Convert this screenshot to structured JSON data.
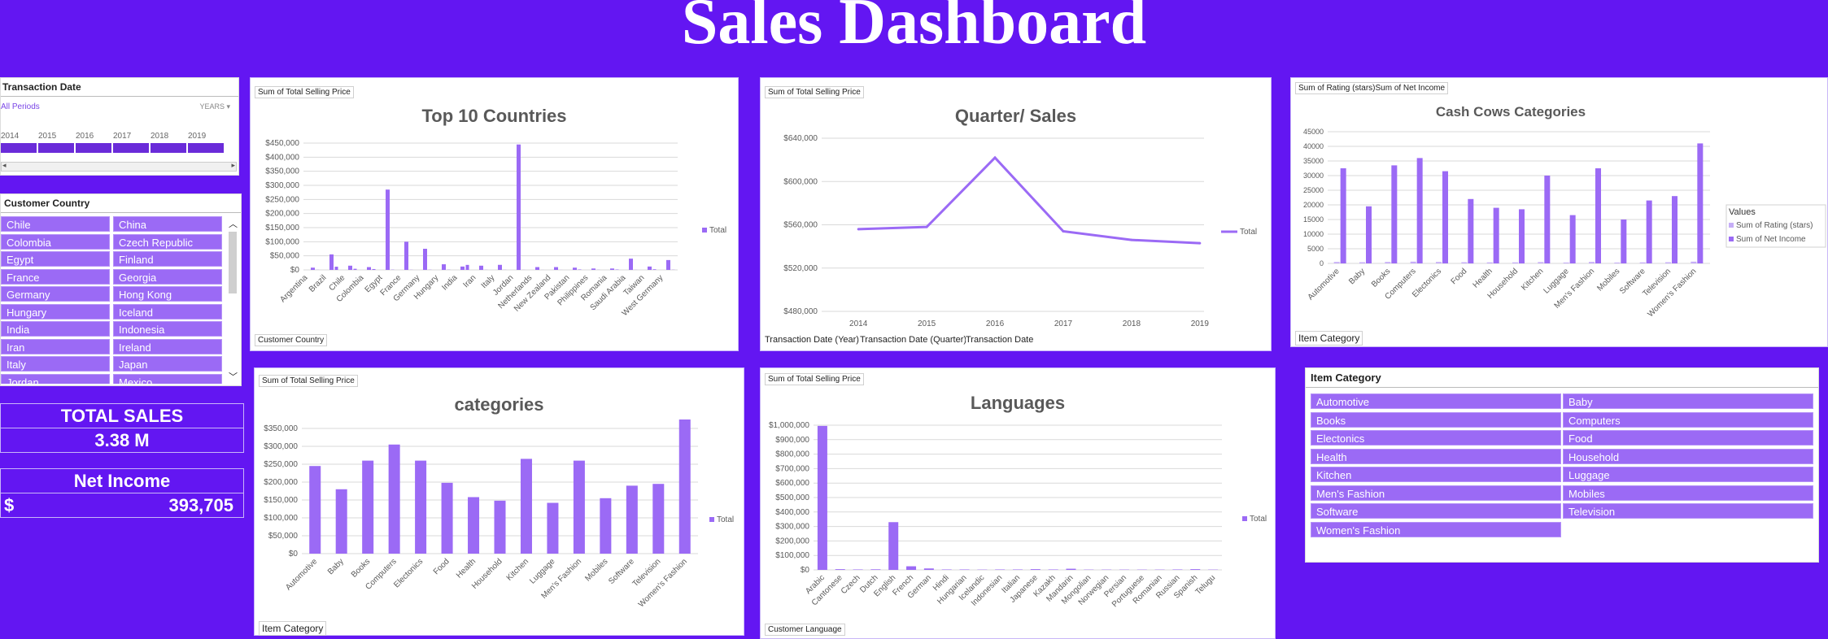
{
  "header": {
    "title": "Sales Dashboard"
  },
  "date_slicer": {
    "title": "Transaction Date",
    "selection": "All Periods",
    "level": "YEARS",
    "years": [
      "2014",
      "2015",
      "2016",
      "2017",
      "2018",
      "2019"
    ]
  },
  "country_slicer": {
    "title": "Customer Country",
    "items": [
      "Chile",
      "China",
      "Colombia",
      "Czech Republic",
      "Egypt",
      "Finland",
      "France",
      "Georgia",
      "Germany",
      "Hong Kong",
      "Hungary",
      "Iceland",
      "India",
      "Indonesia",
      "Iran",
      "Ireland",
      "Italy",
      "Japan",
      "Jordan",
      "Mexico"
    ]
  },
  "kpis": {
    "total_sales_label": "TOTAL SALES",
    "total_sales_value": "3.38 M",
    "net_income_label": "Net Income",
    "net_income_currency": "$",
    "net_income_value": "393,705"
  },
  "category_slicer": {
    "title": "Item Category",
    "items": [
      "Automotive",
      "Baby",
      "Books",
      "Computers",
      "Electonics",
      "Food",
      "Health",
      "Household",
      "Kitchen",
      "Luggage",
      "Men's Fashion",
      "Mobiles",
      "Software",
      "Television",
      "Women's Fashion"
    ]
  },
  "chart_data": [
    {
      "id": "countries",
      "type": "bar",
      "title": "Top 10 Countries",
      "value_field": "Sum of Total Selling Price",
      "axis_field": "Customer Country",
      "legend": "Total",
      "legend_position": "right",
      "categories": [
        "Argentina",
        "Brazil",
        "Chile",
        "Colombia",
        "Egypt",
        "France",
        "Germany",
        "Hungary",
        "India",
        "Iran",
        "Italy",
        "Jordan",
        "Netherlands",
        "New Zealand",
        "Pakistan",
        "Philippines",
        "Romania",
        "Saudi Arabia",
        "Taiwan",
        "West Germany"
      ],
      "x_tick_labels": [
        "Argentina",
        "Brazil",
        "Chile",
        "Colombia",
        "Egypt",
        "France",
        "Germany",
        "Hungary",
        "India",
        "Iran",
        "Italy",
        "Jordan",
        "Netherlands",
        "New Zealand",
        "Pakistan",
        "Philippines",
        "Romania",
        "Saudi Arabia",
        "Taiwan",
        "West Germany"
      ],
      "values": [
        8000,
        55000,
        15000,
        10000,
        285000,
        100000,
        75000,
        20000,
        12000,
        15000,
        18000,
        445000,
        10000,
        10000,
        8000,
        5000,
        5000,
        40000,
        12000,
        35000
      ],
      "ylim": [
        0,
        450000
      ],
      "yticks": [
        0,
        50000,
        100000,
        150000,
        200000,
        250000,
        300000,
        350000,
        400000,
        450000
      ],
      "ytick_labels": [
        "$0",
        "$50,000",
        "$100,000",
        "$150,000",
        "$200,000",
        "$250,000",
        "$300,000",
        "$350,000",
        "$400,000",
        "$450,000"
      ],
      "grid": true
    },
    {
      "id": "quarter",
      "type": "line",
      "title": "Quarter/ Sales",
      "value_field": "Sum of Total Selling Price",
      "axis_fields": [
        "Transaction Date (Year)",
        "Transaction Date (Quarter)",
        "Transaction Date"
      ],
      "legend": "Total",
      "legend_position": "right",
      "x": [
        "2014",
        "2015",
        "2016",
        "2017",
        "2018",
        "2019"
      ],
      "values": [
        556000,
        558000,
        622000,
        554000,
        546000,
        543000
      ],
      "ylim": [
        480000,
        640000
      ],
      "yticks": [
        480000,
        520000,
        560000,
        600000,
        640000
      ],
      "ytick_labels": [
        "$480,000",
        "$520,000",
        "$560,000",
        "$600,000",
        "$640,000"
      ],
      "grid": true
    },
    {
      "id": "cashcows",
      "type": "bar",
      "title": "Cash Cows Categories",
      "value_field": "Sum of Rating (stars)Sum of Net Income",
      "axis_field": "Item Category",
      "legend_title": "Values",
      "legend_position": "right",
      "categories": [
        "Automotive",
        "Baby",
        "Books",
        "Computers",
        "Electonics",
        "Food",
        "Health",
        "Household",
        "Kitchen",
        "Luggage",
        "Men's Fashion",
        "Mobiles",
        "Software",
        "Television",
        "Women's Fashion"
      ],
      "series": [
        {
          "name": "Sum of Rating (stars)",
          "color": "#c6aef7",
          "values": [
            500,
            400,
            500,
            600,
            500,
            400,
            350,
            350,
            450,
            300,
            500,
            300,
            350,
            400,
            600
          ]
        },
        {
          "name": "Sum of Net Income",
          "color": "#9b6af5",
          "values": [
            32500,
            19500,
            33500,
            36000,
            31500,
            22000,
            19000,
            18500,
            30000,
            16500,
            32500,
            15000,
            21500,
            23000,
            41000
          ]
        }
      ],
      "ylim": [
        0,
        45000
      ],
      "yticks": [
        0,
        5000,
        10000,
        15000,
        20000,
        25000,
        30000,
        35000,
        40000,
        45000
      ],
      "ytick_labels": [
        "0",
        "5000",
        "10000",
        "15000",
        "20000",
        "25000",
        "30000",
        "35000",
        "40000",
        "45000"
      ],
      "grid": true
    },
    {
      "id": "categories",
      "type": "bar",
      "title": "categories",
      "value_field": "Sum of Total Selling Price",
      "axis_field": "Item Category",
      "legend": "Total",
      "legend_position": "right",
      "categories": [
        "Automotive",
        "Baby",
        "Books",
        "Computers",
        "Electonics",
        "Food",
        "Health",
        "Household",
        "Kitchen",
        "Luggage",
        "Men's Fashion",
        "Mobiles",
        "Software",
        "Television",
        "Women's Fashion"
      ],
      "values": [
        245000,
        180000,
        260000,
        305000,
        260000,
        198000,
        158000,
        148000,
        265000,
        142000,
        260000,
        155000,
        190000,
        195000,
        375000
      ],
      "ylim": [
        0,
        350000
      ],
      "yticks": [
        0,
        50000,
        100000,
        150000,
        200000,
        250000,
        300000,
        350000
      ],
      "ytick_labels": [
        "$0",
        "$50,000",
        "$100,000",
        "$150,000",
        "$200,000",
        "$250,000",
        "$300,000",
        "$350,000"
      ],
      "grid": true
    },
    {
      "id": "languages",
      "type": "bar",
      "title": "Languages",
      "value_field": "Sum of Total Selling Price",
      "axis_field": "Customer Language",
      "legend": "Total",
      "legend_position": "right",
      "categories": [
        "Arabic",
        "Cantonese",
        "Czech",
        "Dutch",
        "English",
        "French",
        "German",
        "Hindi",
        "Hungarian",
        "Icelandic",
        "Indonesian",
        "Italian",
        "Japanese",
        "Kazakh",
        "Mandarin",
        "Mongolian",
        "Norwegian",
        "Persian",
        "Portuguese",
        "Romanian",
        "Russian",
        "Spanish",
        "Telugu"
      ],
      "values": [
        995000,
        5000,
        3000,
        4000,
        330000,
        25000,
        10000,
        3000,
        3000,
        2000,
        3000,
        3000,
        5000,
        3000,
        8000,
        2000,
        2000,
        2000,
        2000,
        2000,
        3000,
        5000,
        2000
      ],
      "ylim": [
        0,
        1000000
      ],
      "yticks": [
        0,
        100000,
        200000,
        300000,
        400000,
        500000,
        600000,
        700000,
        800000,
        900000,
        1000000
      ],
      "ytick_labels": [
        "$0",
        "$100,000",
        "$200,000",
        "$300,000",
        "$400,000",
        "$500,000",
        "$600,000",
        "$700,000",
        "$800,000",
        "$900,000",
        "$1,000,000"
      ],
      "grid": true
    }
  ]
}
